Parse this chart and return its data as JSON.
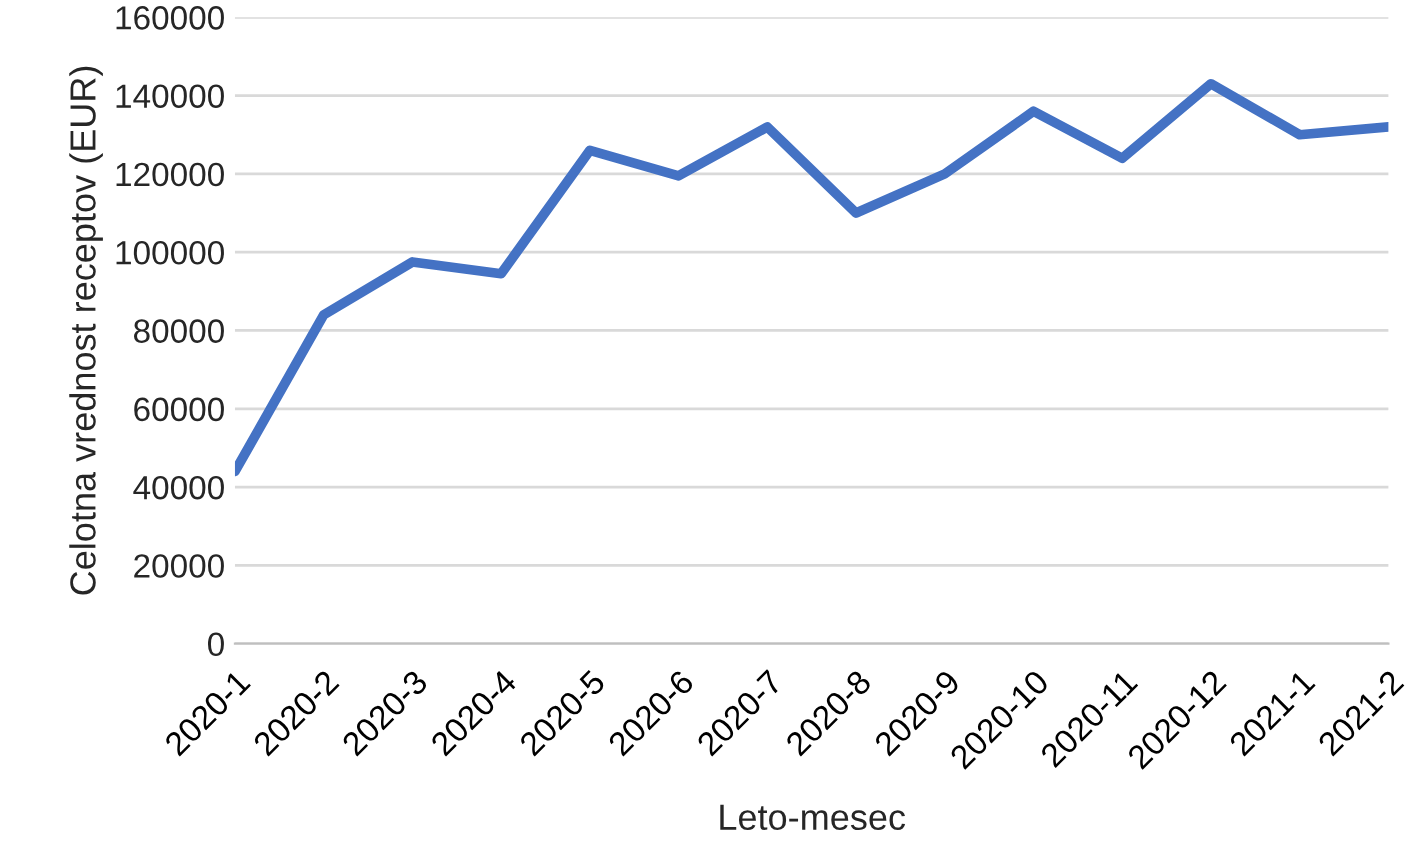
{
  "chart_data": {
    "type": "line",
    "xlabel": "Leto-mesec",
    "ylabel": "Celotna vrednost receptov (EUR)",
    "categories": [
      "2020-1",
      "2020-2",
      "2020-3",
      "2020-4",
      "2020-5",
      "2020-6",
      "2020-7",
      "2020-8",
      "2020-9",
      "2020-10",
      "2020-11",
      "2020-12",
      "2021-1",
      "2021-2"
    ],
    "series": [
      {
        "color": "#4472c4",
        "values": [
          44000,
          84000,
          97500,
          94500,
          126000,
          119500,
          132000,
          110000,
          120000,
          136000,
          124000,
          143000,
          130000,
          132000
        ]
      }
    ],
    "ylim": [
      0,
      160000
    ],
    "yticks": [
      0,
      20000,
      40000,
      60000,
      80000,
      100000,
      120000,
      140000,
      160000
    ],
    "grid": "y",
    "marker": "none",
    "line_style": "solid"
  }
}
